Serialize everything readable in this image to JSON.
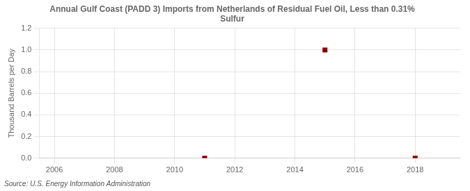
{
  "chart_data": {
    "type": "scatter",
    "title": "Annual Gulf Coast (PADD 3) Imports from Netherlands of Residual Fuel Oil, Less than 0.31%\nSulfur",
    "ylabel": "Thousand Barrels per Day",
    "annotation": "Source: U.S. Energy Information Administration",
    "x": [
      2011,
      2015,
      2018
    ],
    "values": [
      0.0,
      1.0,
      0.0
    ],
    "color": "#8b0000",
    "marker": "square",
    "xlim": [
      2005.5,
      2019.5
    ],
    "xticks": [
      2006,
      2008,
      2010,
      2012,
      2014,
      2016,
      2018
    ],
    "ylim": [
      0.0,
      1.2
    ],
    "yticks": [
      {
        "value": 0.0,
        "label": "0.0"
      },
      0.2,
      0.4,
      0.6,
      0.8,
      {
        "value": 1.0,
        "label": "1.0"
      },
      1.2
    ],
    "grid": true
  }
}
